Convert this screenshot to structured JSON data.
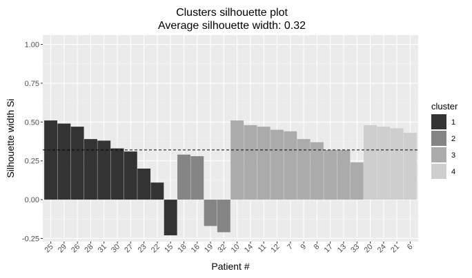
{
  "chart_data": {
    "type": "bar",
    "title": "Clusters silhouette plot",
    "subtitle": "Average silhouette width: 0.32",
    "xlabel": "Patient #",
    "ylabel": "Silhouette width Si",
    "ylim": [
      -0.27,
      1.06
    ],
    "yticks": [
      "-0.25",
      "0.00",
      "0.25",
      "0.50",
      "0.75",
      "1.00"
    ],
    "ytick_values": [
      -0.25,
      0,
      0.25,
      0.5,
      0.75,
      1.0
    ],
    "grid": true,
    "reference_line": {
      "value": 0.32,
      "style": "dashed"
    },
    "categories": [
      "25",
      "29",
      "26",
      "28",
      "31",
      "30",
      "27",
      "23",
      "22",
      "15",
      "18",
      "16",
      "19",
      "32",
      "10",
      "14",
      "11",
      "12",
      "7",
      "9",
      "8",
      "17",
      "13",
      "33",
      "20",
      "24",
      "21",
      "6"
    ],
    "values": [
      0.51,
      0.49,
      0.47,
      0.39,
      0.38,
      0.33,
      0.31,
      0.2,
      0.11,
      -0.23,
      0.29,
      0.28,
      -0.17,
      -0.21,
      0.51,
      0.48,
      0.47,
      0.45,
      0.44,
      0.39,
      0.37,
      0.32,
      0.32,
      0.24,
      0.48,
      0.47,
      0.46,
      0.43
    ],
    "clusters": [
      "1",
      "1",
      "1",
      "1",
      "1",
      "1",
      "1",
      "1",
      "1",
      "1",
      "2",
      "2",
      "2",
      "2",
      "3",
      "3",
      "3",
      "3",
      "3",
      "3",
      "3",
      "3",
      "3",
      "3",
      "4",
      "4",
      "4",
      "4"
    ],
    "legend": {
      "title": "cluster",
      "position": "right",
      "entries": [
        {
          "label": "1",
          "color": "#333333"
        },
        {
          "label": "2",
          "color": "#858585"
        },
        {
          "label": "3",
          "color": "#ababab"
        },
        {
          "label": "4",
          "color": "#cecece"
        }
      ]
    }
  }
}
